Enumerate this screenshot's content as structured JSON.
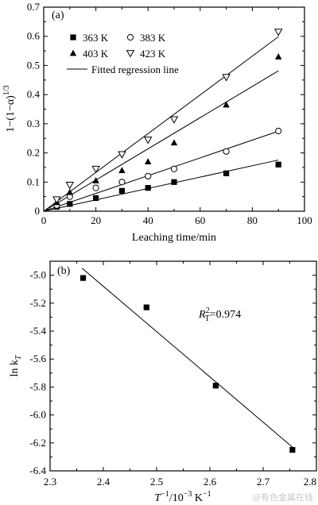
{
  "chart_data": [
    {
      "panel_label": "(a)",
      "type": "scatter",
      "xlabel": "Leaching time/min",
      "ylabel": "1−(1−α)",
      "ylabel_sup": "1/3",
      "xlim": [
        0,
        100
      ],
      "ylim": [
        0,
        0.7
      ],
      "xticks": [
        "0",
        "20",
        "40",
        "60",
        "80",
        "100"
      ],
      "yticks": [
        "0",
        "0.1",
        "0.2",
        "0.3",
        "0.4",
        "0.5",
        "0.6",
        "0.7"
      ],
      "legend_placement": "top-left",
      "legend_line_label": "Fitted regression line",
      "series": [
        {
          "name": "363 K",
          "marker": "square-filled",
          "x": [
            5,
            10,
            20,
            30,
            40,
            50,
            70,
            90
          ],
          "y": [
            0.015,
            0.025,
            0.045,
            0.07,
            0.08,
            0.1,
            0.13,
            0.16
          ],
          "fit_slope": 0.00195
        },
        {
          "name": "383 K",
          "marker": "circle-open",
          "x": [
            5,
            10,
            20,
            30,
            40,
            50,
            70,
            90
          ],
          "y": [
            0.02,
            0.05,
            0.08,
            0.1,
            0.12,
            0.145,
            0.205,
            0.275
          ],
          "fit_slope": 0.00305
        },
        {
          "name": "403 K",
          "marker": "triangle-up-filled",
          "x": [
            5,
            10,
            20,
            30,
            40,
            50,
            70,
            90
          ],
          "y": [
            0.03,
            0.065,
            0.105,
            0.14,
            0.17,
            0.235,
            0.365,
            0.53
          ],
          "fit_slope": 0.00535
        },
        {
          "name": "423 K",
          "marker": "triangle-down-open",
          "x": [
            5,
            10,
            20,
            30,
            40,
            50,
            70,
            90
          ],
          "y": [
            0.04,
            0.09,
            0.145,
            0.195,
            0.245,
            0.315,
            0.46,
            0.615
          ],
          "fit_slope": 0.00665
        }
      ]
    },
    {
      "panel_label": "(b)",
      "type": "scatter",
      "xlabel": "T",
      "xlabel_sup": "−1",
      "xlabel_rest": "/10",
      "xlabel_sup2": "−3",
      "xlabel_unit": " K",
      "xlabel_sup3": "−1",
      "ylabel": "ln k",
      "ylabel_sub": "T",
      "xlim": [
        2.3,
        2.8
      ],
      "ylim": [
        -6.4,
        -4.9
      ],
      "xticks": [
        "2.3",
        "2.4",
        "2.5",
        "2.6",
        "2.7",
        "2.8"
      ],
      "yticks": [
        "-5.0",
        "-5.2",
        "-5.4",
        "-5.6",
        "-5.8",
        "-6.0",
        "-6.2",
        "-6.4"
      ],
      "annotation": {
        "base": "R",
        "sup": "2",
        "sub": "T",
        "value": "=0.974"
      },
      "points": {
        "x": [
          2.362,
          2.481,
          2.611,
          2.755
        ],
        "y": [
          -5.02,
          -5.23,
          -5.79,
          -6.25
        ]
      },
      "fit_line": {
        "x": [
          2.36,
          2.755
        ],
        "y": [
          -4.95,
          -6.23
        ]
      },
      "marker": "square-filled"
    }
  ],
  "watermark": "@有色金属在线"
}
